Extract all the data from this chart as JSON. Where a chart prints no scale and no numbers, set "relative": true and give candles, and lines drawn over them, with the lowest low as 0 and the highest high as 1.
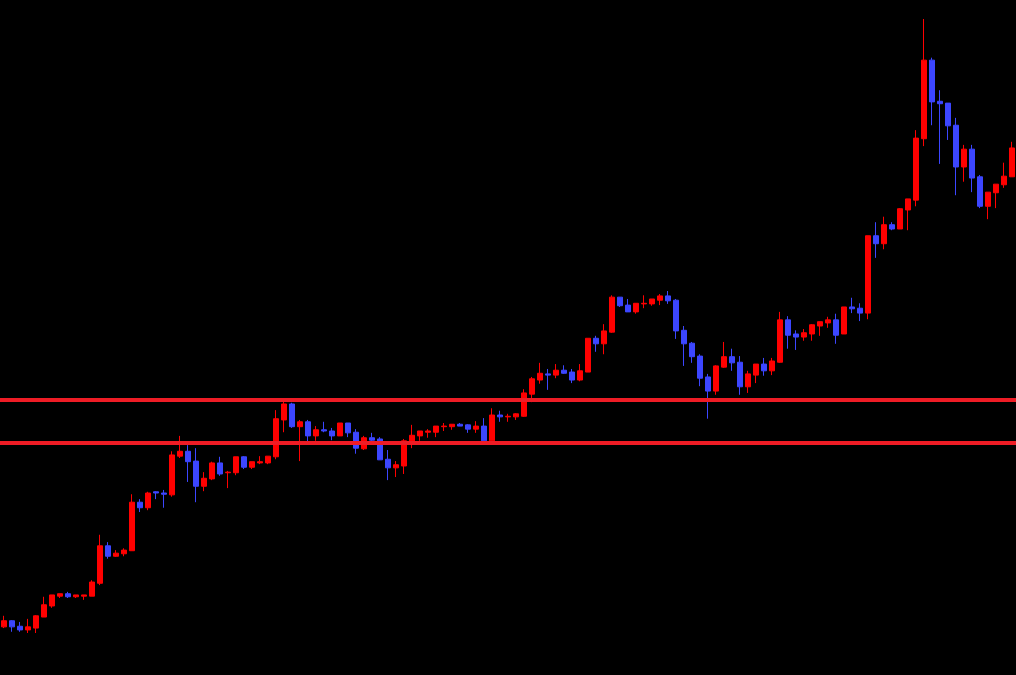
{
  "chart_data": {
    "type": "candlestick",
    "relative": true,
    "grid": false,
    "categories": [
      null,
      null,
      null,
      null,
      null,
      null,
      null,
      null,
      null,
      null,
      null,
      null,
      null,
      null,
      null,
      null,
      null,
      null,
      null,
      null,
      null,
      null,
      null,
      null,
      null,
      null,
      null,
      null,
      null,
      null,
      null,
      null,
      null,
      null,
      null,
      null,
      null,
      null,
      null,
      null,
      null,
      null,
      null,
      null,
      null,
      null,
      null,
      null,
      null,
      null,
      null,
      null,
      null,
      null,
      null,
      null,
      null,
      null,
      null,
      null,
      null,
      null,
      null,
      null,
      null,
      null,
      null,
      null,
      null,
      null,
      null,
      null,
      null,
      null,
      null,
      null,
      null,
      null,
      null,
      null,
      null,
      null,
      null,
      null,
      null,
      null,
      null,
      null,
      null,
      null,
      null,
      null,
      null,
      null,
      null,
      null,
      null,
      null,
      null,
      null,
      null,
      null,
      null,
      null,
      null,
      null,
      null,
      null,
      null,
      null,
      null,
      null,
      null,
      null,
      null,
      null,
      null,
      null,
      null,
      null,
      null,
      null,
      null,
      null,
      null,
      null,
      null
    ],
    "ohlc": [
      [
        0.01,
        0.028,
        0.008,
        0.02
      ],
      [
        0.02,
        0.021,
        0.002,
        0.01
      ],
      [
        0.011,
        0.018,
        0.002,
        0.005
      ],
      [
        0.005,
        0.023,
        0,
        0.01
      ],
      [
        0.008,
        0.029,
        0,
        0.028
      ],
      [
        0.026,
        0.059,
        0.026,
        0.046
      ],
      [
        0.044,
        0.062,
        0.041,
        0.062
      ],
      [
        0.06,
        0.064,
        0.057,
        0.064
      ],
      [
        0.064,
        0.067,
        0.057,
        0.059
      ],
      [
        0.059,
        0.062,
        0.057,
        0.062
      ],
      [
        0.06,
        0.062,
        0.054,
        0.062
      ],
      [
        0.06,
        0.086,
        0.06,
        0.083
      ],
      [
        0.081,
        0.16,
        0.078,
        0.142
      ],
      [
        0.142,
        0.148,
        0.121,
        0.125
      ],
      [
        0.125,
        0.135,
        0.124,
        0.13
      ],
      [
        0.129,
        0.138,
        0.125,
        0.135
      ],
      [
        0.134,
        0.226,
        0.134,
        0.213
      ],
      [
        0.213,
        0.218,
        0.197,
        0.204
      ],
      [
        0.204,
        0.23,
        0.2,
        0.228
      ],
      [
        0.23,
        0.231,
        0.218,
        0.228
      ],
      [
        0.228,
        0.233,
        0.204,
        0.226
      ],
      [
        0.225,
        0.296,
        0.222,
        0.29
      ],
      [
        0.288,
        0.321,
        0.285,
        0.296
      ],
      [
        0.296,
        0.306,
        0.246,
        0.279
      ],
      [
        0.28,
        0.301,
        0.213,
        0.239
      ],
      [
        0.239,
        0.262,
        0.231,
        0.252
      ],
      [
        0.251,
        0.279,
        0.249,
        0.277
      ],
      [
        0.277,
        0.287,
        0.256,
        0.259
      ],
      [
        0.261,
        0.264,
        0.236,
        0.262
      ],
      [
        0.261,
        0.287,
        0.257,
        0.287
      ],
      [
        0.287,
        0.288,
        0.267,
        0.27
      ],
      [
        0.27,
        0.279,
        0.267,
        0.279
      ],
      [
        0.277,
        0.288,
        0.275,
        0.279
      ],
      [
        0.277,
        0.288,
        0.275,
        0.288
      ],
      [
        0.287,
        0.363,
        0.283,
        0.349
      ],
      [
        0.347,
        0.381,
        0.327,
        0.373
      ],
      [
        0.373,
        0.375,
        0.334,
        0.336
      ],
      [
        0.336,
        0.347,
        0.28,
        0.344
      ],
      [
        0.344,
        0.347,
        0.311,
        0.321
      ],
      [
        0.321,
        0.337,
        0.313,
        0.331
      ],
      [
        0.331,
        0.344,
        0.327,
        0.329
      ],
      [
        0.329,
        0.334,
        0.314,
        0.321
      ],
      [
        0.321,
        0.342,
        0.321,
        0.342
      ],
      [
        0.342,
        0.342,
        0.319,
        0.326
      ],
      [
        0.327,
        0.332,
        0.292,
        0.301
      ],
      [
        0.3,
        0.321,
        0.298,
        0.318
      ],
      [
        0.318,
        0.326,
        0.311,
        0.314
      ],
      [
        0.316,
        0.319,
        0.282,
        0.282
      ],
      [
        0.283,
        0.298,
        0.249,
        0.269
      ],
      [
        0.269,
        0.28,
        0.254,
        0.274
      ],
      [
        0.272,
        0.316,
        0.259,
        0.313
      ],
      [
        0.311,
        0.339,
        0.301,
        0.322
      ],
      [
        0.321,
        0.329,
        0.313,
        0.329
      ],
      [
        0.327,
        0.332,
        0.318,
        0.329
      ],
      [
        0.327,
        0.337,
        0.319,
        0.337
      ],
      [
        0.336,
        0.342,
        0.329,
        0.337
      ],
      [
        0.336,
        0.34,
        0.331,
        0.34
      ],
      [
        0.34,
        0.342,
        0.337,
        0.337
      ],
      [
        0.339,
        0.34,
        0.326,
        0.332
      ],
      [
        0.332,
        0.345,
        0.326,
        0.337
      ],
      [
        0.337,
        0.35,
        0.311,
        0.313
      ],
      [
        0.313,
        0.366,
        0.311,
        0.355
      ],
      [
        0.355,
        0.362,
        0.344,
        0.352
      ],
      [
        0.352,
        0.357,
        0.344,
        0.353
      ],
      [
        0.352,
        0.358,
        0.347,
        0.357
      ],
      [
        0.353,
        0.397,
        0.352,
        0.391
      ],
      [
        0.389,
        0.417,
        0.376,
        0.414
      ],
      [
        0.412,
        0.44,
        0.406,
        0.423
      ],
      [
        0.422,
        0.43,
        0.396,
        0.42
      ],
      [
        0.42,
        0.438,
        0.415,
        0.428
      ],
      [
        0.428,
        0.436,
        0.422,
        0.423
      ],
      [
        0.425,
        0.43,
        0.407,
        0.412
      ],
      [
        0.412,
        0.438,
        0.41,
        0.427
      ],
      [
        0.425,
        0.48,
        0.425,
        0.48
      ],
      [
        0.48,
        0.484,
        0.458,
        0.471
      ],
      [
        0.471,
        0.503,
        0.454,
        0.492
      ],
      [
        0.49,
        0.55,
        0.489,
        0.547
      ],
      [
        0.547,
        0.547,
        0.531,
        0.533
      ],
      [
        0.534,
        0.544,
        0.523,
        0.523
      ],
      [
        0.523,
        0.537,
        0.52,
        0.537
      ],
      [
        0.536,
        0.55,
        0.529,
        0.537
      ],
      [
        0.536,
        0.544,
        0.533,
        0.544
      ],
      [
        0.542,
        0.552,
        0.534,
        0.549
      ],
      [
        0.549,
        0.557,
        0.536,
        0.541
      ],
      [
        0.542,
        0.544,
        0.479,
        0.492
      ],
      [
        0.493,
        0.5,
        0.435,
        0.471
      ],
      [
        0.472,
        0.474,
        0.44,
        0.45
      ],
      [
        0.451,
        0.454,
        0.402,
        0.415
      ],
      [
        0.417,
        0.422,
        0.349,
        0.394
      ],
      [
        0.394,
        0.436,
        0.388,
        0.435
      ],
      [
        0.433,
        0.474,
        0.432,
        0.45
      ],
      [
        0.45,
        0.463,
        0.427,
        0.44
      ],
      [
        0.441,
        0.451,
        0.388,
        0.401
      ],
      [
        0.401,
        0.427,
        0.391,
        0.422
      ],
      [
        0.42,
        0.438,
        0.407,
        0.438
      ],
      [
        0.438,
        0.448,
        0.419,
        0.427
      ],
      [
        0.427,
        0.448,
        0.42,
        0.443
      ],
      [
        0.441,
        0.523,
        0.44,
        0.51
      ],
      [
        0.51,
        0.516,
        0.463,
        0.485
      ],
      [
        0.487,
        0.493,
        0.461,
        0.482
      ],
      [
        0.482,
        0.495,
        0.476,
        0.489
      ],
      [
        0.487,
        0.503,
        0.476,
        0.502
      ],
      [
        0.5,
        0.507,
        0.484,
        0.507
      ],
      [
        0.505,
        0.515,
        0.497,
        0.51
      ],
      [
        0.51,
        0.52,
        0.471,
        0.485
      ],
      [
        0.487,
        0.531,
        0.487,
        0.531
      ],
      [
        0.531,
        0.546,
        0.521,
        0.528
      ],
      [
        0.529,
        0.537,
        0.508,
        0.521
      ],
      [
        0.521,
        0.647,
        0.511,
        0.647
      ],
      [
        0.647,
        0.669,
        0.611,
        0.634
      ],
      [
        0.634,
        0.678,
        0.625,
        0.665
      ],
      [
        0.665,
        0.669,
        0.656,
        0.658
      ],
      [
        0.658,
        0.692,
        0.658,
        0.691
      ],
      [
        0.689,
        0.707,
        0.656,
        0.707
      ],
      [
        0.705,
        0.819,
        0.695,
        0.806
      ],
      [
        0.805,
        1,
        0.793,
        0.933
      ],
      [
        0.933,
        0.937,
        0.827,
        0.865
      ],
      [
        0.866,
        0.884,
        0.764,
        0.862
      ],
      [
        0.863,
        0.863,
        0.803,
        0.826
      ],
      [
        0.827,
        0.839,
        0.713,
        0.759
      ],
      [
        0.759,
        0.795,
        0.735,
        0.788
      ],
      [
        0.788,
        0.795,
        0.718,
        0.741
      ],
      [
        0.743,
        0.746,
        0.692,
        0.695
      ],
      [
        0.695,
        0.718,
        0.674,
        0.718
      ],
      [
        0.717,
        0.731,
        0.692,
        0.731
      ],
      [
        0.73,
        0.766,
        0.725,
        0.744
      ],
      [
        0.743,
        0.8,
        0.743,
        0.79
      ]
    ],
    "colors": [
      "#ff0000",
      "#3c46ff",
      "#3c46ff",
      "#ff0000",
      "#ff0000",
      "#ff0000",
      "#ff0000",
      "#ff0000",
      "#3c46ff",
      "#ff0000",
      "#ff0000",
      "#ff0000",
      "#ff0000",
      "#3c46ff",
      "#ff0000",
      "#ff0000",
      "#ff0000",
      "#3c46ff",
      "#ff0000",
      "#3c46ff",
      "#3c46ff",
      "#ff0000",
      "#ff0000",
      "#3c46ff",
      "#3c46ff",
      "#ff0000",
      "#ff0000",
      "#3c46ff",
      "#ff0000",
      "#ff0000",
      "#3c46ff",
      "#ff0000",
      "#ff0000",
      "#ff0000",
      "#ff0000",
      "#ff0000",
      "#3c46ff",
      "#ff0000",
      "#3c46ff",
      "#ff0000",
      "#3c46ff",
      "#3c46ff",
      "#ff0000",
      "#3c46ff",
      "#3c46ff",
      "#ff0000",
      "#3c46ff",
      "#3c46ff",
      "#3c46ff",
      "#ff0000",
      "#ff0000",
      "#ff0000",
      "#ff0000",
      "#ff0000",
      "#ff0000",
      "#ff0000",
      "#ff0000",
      "#3c46ff",
      "#3c46ff",
      "#ff0000",
      "#3c46ff",
      "#ff0000",
      "#3c46ff",
      "#ff0000",
      "#ff0000",
      "#ff0000",
      "#ff0000",
      "#ff0000",
      "#3c46ff",
      "#ff0000",
      "#3c46ff",
      "#3c46ff",
      "#ff0000",
      "#ff0000",
      "#3c46ff",
      "#ff0000",
      "#ff0000",
      "#3c46ff",
      "#3c46ff",
      "#ff0000",
      "#ff0000",
      "#ff0000",
      "#ff0000",
      "#3c46ff",
      "#3c46ff",
      "#3c46ff",
      "#3c46ff",
      "#3c46ff",
      "#3c46ff",
      "#ff0000",
      "#ff0000",
      "#3c46ff",
      "#3c46ff",
      "#ff0000",
      "#ff0000",
      "#3c46ff",
      "#ff0000",
      "#ff0000",
      "#3c46ff",
      "#3c46ff",
      "#ff0000",
      "#ff0000",
      "#ff0000",
      "#ff0000",
      "#3c46ff",
      "#ff0000",
      "#3c46ff",
      "#3c46ff",
      "#ff0000",
      "#3c46ff",
      "#ff0000",
      "#3c46ff",
      "#ff0000",
      "#ff0000",
      "#ff0000",
      "#ff0000",
      "#3c46ff",
      "#3c46ff",
      "#3c46ff",
      "#3c46ff",
      "#ff0000",
      "#3c46ff",
      "#3c46ff",
      "#ff0000",
      "#ff0000",
      "#ff0000",
      "#ff0000"
    ],
    "ref_lines": [
      {
        "axis": "y",
        "value": 0.383,
        "color": "#ee1c25"
      },
      {
        "axis": "y",
        "value": 0.306,
        "color": "#ee1c25"
      }
    ]
  }
}
